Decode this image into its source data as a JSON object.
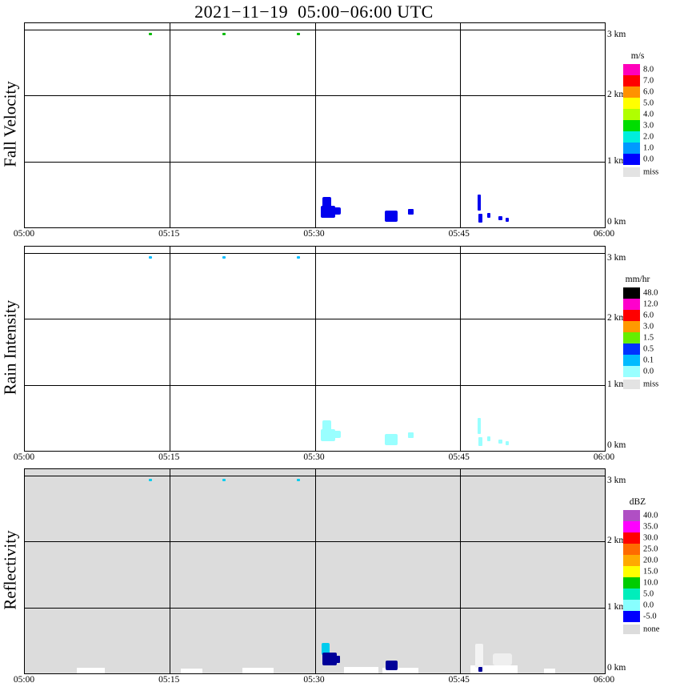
{
  "title": "2021−11−19  05:00−06:00 UTC",
  "axes": {
    "time_unit": "minutes after 05:00 UTC",
    "height_unit": "km",
    "x_ticks": [
      "05:00",
      "05:15",
      "05:30",
      "05:45",
      "06:00"
    ],
    "x_tick_minutes": [
      0,
      15,
      30,
      45,
      60
    ],
    "x_gridline_minutes": [
      15,
      30,
      45
    ],
    "y_ticks": [
      {
        "label": "3 km",
        "km": 3
      },
      {
        "label": "2 km",
        "km": 2
      },
      {
        "label": "1 km",
        "km": 1
      },
      {
        "label": "0 km",
        "km": 0
      }
    ],
    "y_gridline_km": [
      1,
      2,
      3
    ],
    "t_max_min": 60,
    "h_max_km": 3.1
  },
  "chart_data": [
    {
      "type": "heatmap",
      "panel": "fall-velocity",
      "ylabel": "Fall Velocity",
      "background": "#ffffff",
      "x_range": [
        "05:00",
        "06:00"
      ],
      "y_range_km": [
        0,
        3.1
      ],
      "colorbar": {
        "unit": "m/s",
        "levels": [
          {
            "label": "8.0",
            "color": "#ff00bb"
          },
          {
            "label": "7.0",
            "color": "#ff0000"
          },
          {
            "label": "6.0",
            "color": "#ff9100"
          },
          {
            "label": "5.0",
            "color": "#ffff00"
          },
          {
            "label": "4.0",
            "color": "#b0ff00"
          },
          {
            "label": "3.0",
            "color": "#00dd00"
          },
          {
            "label": "2.0",
            "color": "#00eedd"
          },
          {
            "label": "1.0",
            "color": "#0099ff"
          },
          {
            "label": "0.0",
            "color": "#0000ff"
          }
        ],
        "missing": {
          "label": "miss",
          "color": "#e3e3e3"
        }
      },
      "echoes": [
        {
          "t0": 12.8,
          "t1": 13.2,
          "h0": 2.92,
          "h1": 2.96,
          "value": "3-4 m/s",
          "color": "#00bb00",
          "r": 1
        },
        {
          "t0": 20.4,
          "t1": 20.8,
          "h0": 2.92,
          "h1": 2.96,
          "value": "3-4 m/s",
          "color": "#00bb00",
          "r": 1
        },
        {
          "t0": 28.1,
          "t1": 28.5,
          "h0": 2.92,
          "h1": 2.96,
          "value": "3-4 m/s",
          "color": "#00bb00",
          "r": 1
        },
        {
          "t0": 30.8,
          "t1": 31.7,
          "h0": 0.28,
          "h1": 0.46,
          "value": "0-1 m/s",
          "color": "#0000ee",
          "r": 2
        },
        {
          "t0": 30.6,
          "t1": 32.1,
          "h0": 0.15,
          "h1": 0.33,
          "value": "0-1 m/s",
          "color": "#0000ee",
          "r": 2
        },
        {
          "t0": 31.9,
          "t1": 32.7,
          "h0": 0.19,
          "h1": 0.3,
          "value": "0-1 m/s",
          "color": "#0000ee",
          "r": 2
        },
        {
          "t0": 37.2,
          "t1": 38.6,
          "h0": 0.09,
          "h1": 0.25,
          "value": "0-1 m/s",
          "color": "#0000ee",
          "r": 2
        },
        {
          "t0": 39.6,
          "t1": 40.2,
          "h0": 0.2,
          "h1": 0.28,
          "value": "0-1 m/s",
          "color": "#0000ee",
          "r": 1
        },
        {
          "t0": 46.8,
          "t1": 47.2,
          "h0": 0.26,
          "h1": 0.5,
          "value": "0-1 m/s",
          "color": "#0000ee",
          "r": 1
        },
        {
          "t0": 46.9,
          "t1": 47.3,
          "h0": 0.07,
          "h1": 0.21,
          "value": "0-1 m/s",
          "color": "#0000ee",
          "r": 1
        },
        {
          "t0": 47.8,
          "t1": 48.2,
          "h0": 0.15,
          "h1": 0.22,
          "value": "0-1 m/s",
          "color": "#0000ee",
          "r": 1
        },
        {
          "t0": 49.0,
          "t1": 49.4,
          "h0": 0.11,
          "h1": 0.17,
          "value": "0-1 m/s",
          "color": "#0000ee",
          "r": 1
        },
        {
          "t0": 49.7,
          "t1": 50.1,
          "h0": 0.09,
          "h1": 0.15,
          "value": "0-1 m/s",
          "color": "#0000ee",
          "r": 1
        }
      ]
    },
    {
      "type": "heatmap",
      "panel": "rain-intensity",
      "ylabel": "Rain Intensity",
      "background": "#ffffff",
      "x_range": [
        "05:00",
        "06:00"
      ],
      "y_range_km": [
        0,
        3.1
      ],
      "colorbar": {
        "unit": "mm/hr",
        "levels": [
          {
            "label": "48.0",
            "color": "#000000"
          },
          {
            "label": "12.0",
            "color": "#ff00cc"
          },
          {
            "label": "6.0",
            "color": "#ff0000"
          },
          {
            "label": "3.0",
            "color": "#ff9900"
          },
          {
            "label": "1.5",
            "color": "#66ee00"
          },
          {
            "label": "0.5",
            "color": "#0033ff"
          },
          {
            "label": "0.1",
            "color": "#00bbff"
          },
          {
            "label": "0.0",
            "color": "#99ffff"
          }
        ],
        "missing": {
          "label": "miss",
          "color": "#e3e3e3"
        }
      },
      "echoes": [
        {
          "t0": 12.8,
          "t1": 13.2,
          "h0": 2.92,
          "h1": 2.96,
          "value": "0.1-0.5 mm/hr",
          "color": "#00bbff",
          "r": 1
        },
        {
          "t0": 20.4,
          "t1": 20.8,
          "h0": 2.92,
          "h1": 2.96,
          "value": "0.1-0.5 mm/hr",
          "color": "#00bbff",
          "r": 1
        },
        {
          "t0": 28.1,
          "t1": 28.5,
          "h0": 2.92,
          "h1": 2.96,
          "value": "0.1-0.5 mm/hr",
          "color": "#00bbff",
          "r": 1
        },
        {
          "t0": 30.8,
          "t1": 31.7,
          "h0": 0.28,
          "h1": 0.46,
          "value": "0.0-0.1 mm/hr",
          "color": "#99ffff",
          "r": 2
        },
        {
          "t0": 30.6,
          "t1": 32.1,
          "h0": 0.15,
          "h1": 0.33,
          "value": "0.0-0.1 mm/hr",
          "color": "#99ffff",
          "r": 2
        },
        {
          "t0": 31.9,
          "t1": 32.7,
          "h0": 0.19,
          "h1": 0.3,
          "value": "0.0-0.1 mm/hr",
          "color": "#99ffff",
          "r": 2
        },
        {
          "t0": 37.2,
          "t1": 38.6,
          "h0": 0.09,
          "h1": 0.25,
          "value": "0.0-0.1 mm/hr",
          "color": "#99ffff",
          "r": 2
        },
        {
          "t0": 39.6,
          "t1": 40.2,
          "h0": 0.2,
          "h1": 0.28,
          "value": "0.0-0.1 mm/hr",
          "color": "#99ffff",
          "r": 1
        },
        {
          "t0": 46.8,
          "t1": 47.2,
          "h0": 0.26,
          "h1": 0.5,
          "value": "0.0-0.1 mm/hr",
          "color": "#99ffff",
          "r": 1
        },
        {
          "t0": 46.9,
          "t1": 47.3,
          "h0": 0.07,
          "h1": 0.21,
          "value": "0.0-0.1 mm/hr",
          "color": "#99ffff",
          "r": 1
        },
        {
          "t0": 47.8,
          "t1": 48.2,
          "h0": 0.15,
          "h1": 0.22,
          "value": "0.0-0.1 mm/hr",
          "color": "#99ffff",
          "r": 1
        },
        {
          "t0": 49.0,
          "t1": 49.4,
          "h0": 0.11,
          "h1": 0.17,
          "value": "0.0-0.1 mm/hr",
          "color": "#99ffff",
          "r": 1
        },
        {
          "t0": 49.7,
          "t1": 50.1,
          "h0": 0.09,
          "h1": 0.15,
          "value": "0.0-0.1 mm/hr",
          "color": "#99ffff",
          "r": 1
        }
      ]
    },
    {
      "type": "heatmap",
      "panel": "reflectivity",
      "ylabel": "Reflectivity",
      "background": "#dcdcdc",
      "x_range": [
        "05:00",
        "06:00"
      ],
      "y_range_km": [
        0,
        3.1
      ],
      "colorbar": {
        "unit": "dBZ",
        "levels": [
          {
            "label": "40.0",
            "color": "#b04fc4"
          },
          {
            "label": "35.0",
            "color": "#ff00ff"
          },
          {
            "label": "30.0",
            "color": "#ff0000"
          },
          {
            "label": "25.0",
            "color": "#ff6a00"
          },
          {
            "label": "20.0",
            "color": "#ffaa00"
          },
          {
            "label": "15.0",
            "color": "#ffff00"
          },
          {
            "label": "10.0",
            "color": "#00cc00"
          },
          {
            "label": "5.0",
            "color": "#00eebb"
          },
          {
            "label": "0.0",
            "color": "#88ffff"
          },
          {
            "label": "-5.0",
            "color": "#0000ff"
          }
        ],
        "missing": {
          "label": "none",
          "color": "#dcdcdc"
        }
      },
      "echoes": [
        {
          "t0": 5.4,
          "t1": 8.3,
          "h0": 0,
          "h1": 0.08,
          "value": "no echo",
          "color": "#ffffff"
        },
        {
          "t0": 16.1,
          "t1": 18.4,
          "h0": 0,
          "h1": 0.07,
          "value": "no echo",
          "color": "#ffffff"
        },
        {
          "t0": 22.5,
          "t1": 25.7,
          "h0": 0,
          "h1": 0.08,
          "value": "no echo",
          "color": "#ffffff"
        },
        {
          "t0": 33.0,
          "t1": 36.6,
          "h0": 0,
          "h1": 0.1,
          "value": "no echo",
          "color": "#ffffff"
        },
        {
          "t0": 37.0,
          "t1": 40.7,
          "h0": 0,
          "h1": 0.08,
          "value": "no echo",
          "color": "#ffffff"
        },
        {
          "t0": 46.1,
          "t1": 51.0,
          "h0": 0,
          "h1": 0.12,
          "value": "no echo",
          "color": "#ffffff"
        },
        {
          "t0": 53.7,
          "t1": 54.9,
          "h0": 0,
          "h1": 0.07,
          "value": "no echo",
          "color": "#ffffff"
        },
        {
          "t0": 46.6,
          "t1": 47.4,
          "h0": 0.08,
          "h1": 0.45,
          "value": "faint echo",
          "color": "#f4f4f4",
          "r": 2
        },
        {
          "t0": 48.4,
          "t1": 50.4,
          "h0": 0.12,
          "h1": 0.3,
          "value": "faint echo",
          "color": "#efefef",
          "r": 3
        },
        {
          "t0": 12.8,
          "t1": 13.2,
          "h0": 2.92,
          "h1": 2.96,
          "value": "0-5 dBZ",
          "color": "#00ccee",
          "r": 1
        },
        {
          "t0": 20.4,
          "t1": 20.8,
          "h0": 2.92,
          "h1": 2.96,
          "value": "0-5 dBZ",
          "color": "#00ccee",
          "r": 1
        },
        {
          "t0": 28.1,
          "t1": 28.5,
          "h0": 2.92,
          "h1": 2.96,
          "value": "0-5 dBZ",
          "color": "#00ccee",
          "r": 1
        },
        {
          "t0": 30.7,
          "t1": 31.5,
          "h0": 0.28,
          "h1": 0.46,
          "value": "0-5 dBZ",
          "color": "#00ccee",
          "r": 2
        },
        {
          "t0": 30.8,
          "t1": 32.3,
          "h0": 0.12,
          "h1": 0.32,
          "value": "-5-0 dBZ",
          "color": "#000099",
          "r": 2
        },
        {
          "t0": 31.9,
          "t1": 32.6,
          "h0": 0.16,
          "h1": 0.27,
          "value": "-5-0 dBZ",
          "color": "#000099",
          "r": 1
        },
        {
          "t0": 37.3,
          "t1": 38.6,
          "h0": 0.05,
          "h1": 0.2,
          "value": "-5-0 dBZ",
          "color": "#000099",
          "r": 2
        },
        {
          "t0": 46.9,
          "t1": 47.3,
          "h0": 0.03,
          "h1": 0.1,
          "value": "-5-0 dBZ",
          "color": "#000099",
          "r": 1
        }
      ]
    }
  ]
}
